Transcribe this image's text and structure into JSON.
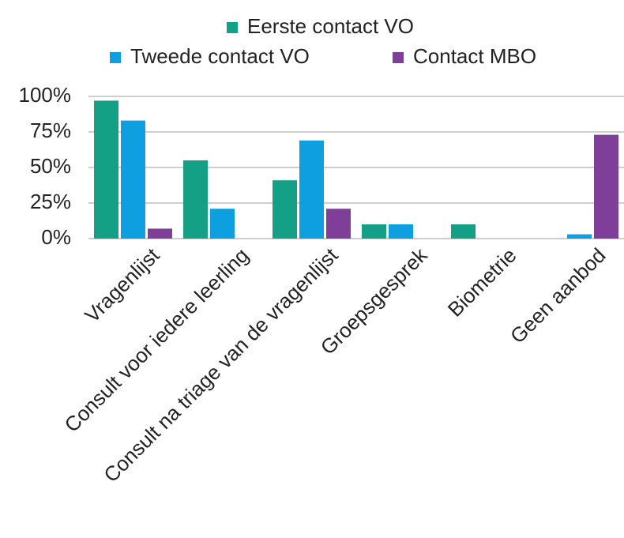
{
  "chart_data": {
    "type": "bar",
    "categories": [
      "Vragenlijst",
      "Consult voor iedere leerling",
      "Consult na triage van de vragenlijst",
      "Groepsgesprek",
      "Biometrie",
      "Geen aanbod"
    ],
    "series": [
      {
        "name": "Eerste contact VO",
        "color": "#13a085",
        "values": [
          97,
          55,
          41,
          10,
          10,
          0
        ]
      },
      {
        "name": "Tweede contact VO",
        "color": "#0d9fe0",
        "values": [
          83,
          21,
          69,
          10,
          0,
          3
        ]
      },
      {
        "name": "Contact MBO",
        "color": "#7e3f98",
        "values": [
          7,
          0,
          21,
          0,
          0,
          73
        ]
      }
    ],
    "ylim": [
      0,
      100
    ],
    "yticks": [
      {
        "value": 0,
        "label": "0%"
      },
      {
        "value": 25,
        "label": "25%"
      },
      {
        "value": 50,
        "label": "50%"
      },
      {
        "value": 75,
        "label": "75%"
      },
      {
        "value": 100,
        "label": "100%"
      }
    ],
    "grid": true,
    "legend": "top"
  }
}
